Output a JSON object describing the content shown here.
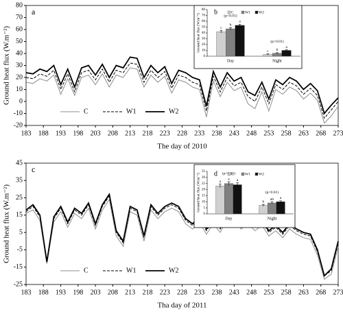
{
  "chart_data": [
    {
      "type": "line",
      "label": "a",
      "y_label": "Ground heat flux (W.m⁻²)",
      "x_label": "The day of 2010",
      "x": [
        183,
        185,
        187,
        189,
        191,
        193,
        195,
        197,
        199,
        201,
        203,
        205,
        207,
        209,
        211,
        213,
        215,
        217,
        219,
        221,
        223,
        225,
        227,
        229,
        231,
        233,
        235,
        237,
        239,
        241,
        243,
        245,
        247,
        249,
        251,
        253,
        255,
        257,
        259,
        261,
        263,
        265,
        267,
        269,
        271,
        273
      ],
      "series": [
        {
          "name": "C",
          "color": "#8c8c8c",
          "values": [
            16,
            15,
            19,
            17,
            22,
            6,
            19,
            5,
            20,
            22,
            14,
            23,
            12,
            22,
            20,
            28,
            27,
            12,
            22,
            16,
            21,
            7,
            18,
            16,
            12,
            10,
            -13,
            17,
            4,
            16,
            9,
            12,
            -2,
            -6,
            8,
            -8,
            10,
            6,
            12,
            9,
            2,
            7,
            1,
            -18,
            -12,
            -4
          ]
        },
        {
          "name": "W1",
          "color": "#000000",
          "dash": true,
          "values": [
            20,
            19,
            23,
            21,
            26,
            10,
            23,
            8,
            24,
            26,
            18,
            27,
            16,
            26,
            24,
            32,
            31,
            16,
            26,
            20,
            25,
            11,
            22,
            20,
            16,
            14,
            -8,
            21,
            8,
            20,
            13,
            16,
            4,
            0,
            12,
            -2,
            14,
            10,
            16,
            13,
            6,
            11,
            5,
            -14,
            -7,
            0
          ]
        },
        {
          "name": "W2",
          "color": "#000000",
          "thick": true,
          "values": [
            24,
            23,
            27,
            25,
            30,
            14,
            27,
            12,
            28,
            30,
            22,
            31,
            20,
            30,
            28,
            37,
            36,
            20,
            30,
            24,
            29,
            15,
            26,
            24,
            20,
            18,
            -4,
            25,
            12,
            24,
            17,
            20,
            8,
            5,
            16,
            2,
            18,
            14,
            20,
            17,
            10,
            15,
            9,
            -10,
            -3,
            3
          ]
        }
      ],
      "xlim": [
        183,
        273
      ],
      "xticks": [
        183,
        188,
        193,
        198,
        203,
        208,
        213,
        218,
        223,
        228,
        233,
        238,
        243,
        248,
        253,
        258,
        263,
        268,
        273
      ],
      "ylim": [
        -20,
        80
      ],
      "yticks": [
        -20,
        -10,
        0,
        10,
        20,
        30,
        40,
        50,
        60,
        70,
        80
      ],
      "legend": "lower left"
    },
    {
      "type": "bar",
      "label": "b",
      "y_label": "Ground heat flux (W.m⁻²)",
      "categories": [
        "Day",
        "Night"
      ],
      "series": [
        {
          "name": "C",
          "color": "#d0d0d0",
          "values": [
            42,
            3
          ],
          "errors": [
            2,
            1
          ],
          "letters": [
            "c",
            "c"
          ]
        },
        {
          "name": "W1",
          "color": "#808080",
          "values": [
            47,
            5
          ],
          "errors": [
            2,
            1
          ],
          "letters": [
            "b",
            "b"
          ]
        },
        {
          "name": "W2",
          "color": "#111111",
          "values": [
            53,
            10
          ],
          "errors": [
            2,
            1
          ],
          "letters": [
            "a",
            "a"
          ]
        }
      ],
      "annotations": [
        "(p<0.01)",
        "(p<0.01)"
      ],
      "ylim": [
        0,
        80
      ],
      "yticks": [
        0,
        10,
        20,
        30,
        40,
        50,
        60,
        70,
        80
      ],
      "legend": "top"
    },
    {
      "type": "line",
      "label": "c",
      "y_label": "Ground heat flux (W.m⁻²)",
      "x_label": "Tha day of 2011",
      "x": [
        183,
        185,
        187,
        189,
        191,
        193,
        195,
        197,
        199,
        201,
        203,
        205,
        207,
        209,
        211,
        213,
        215,
        217,
        219,
        221,
        223,
        225,
        227,
        229,
        231,
        233,
        235,
        237,
        239,
        241,
        243,
        245,
        247,
        249,
        251,
        253,
        255,
        257,
        259,
        261,
        263,
        265,
        267,
        269,
        271,
        273
      ],
      "series": [
        {
          "name": "C",
          "color": "#8c8c8c",
          "values": [
            16,
            18,
            12,
            -13,
            11,
            17,
            8,
            16,
            13,
            19,
            7,
            18,
            24,
            3,
            -3,
            17,
            15,
            0,
            18,
            13,
            17,
            19,
            17,
            10,
            7,
            11,
            4,
            10,
            5,
            13,
            14,
            7,
            10,
            6,
            9,
            3,
            6,
            2,
            7,
            4,
            2,
            1,
            -8,
            -22,
            -19,
            -3
          ]
        },
        {
          "name": "W1",
          "color": "#000000",
          "dash": true,
          "values": [
            17,
            20,
            14,
            -11,
            13,
            19,
            10,
            18,
            15,
            21,
            9,
            20,
            26,
            5,
            -1,
            19,
            17,
            2,
            20,
            15,
            19,
            21,
            19,
            12,
            9,
            13,
            6,
            12,
            7,
            15,
            16,
            9,
            12,
            8,
            11,
            5,
            8,
            4,
            9,
            6,
            4,
            3,
            -6,
            -20,
            -17,
            -1
          ]
        },
        {
          "name": "W2",
          "color": "#000000",
          "thick": true,
          "values": [
            18,
            21,
            15,
            -12,
            14,
            20,
            11,
            19,
            16,
            22,
            10,
            21,
            27,
            6,
            0,
            20,
            18,
            3,
            21,
            16,
            20,
            22,
            20,
            13,
            10,
            14,
            7,
            13,
            8,
            16,
            17,
            10,
            13,
            9,
            12,
            6,
            9,
            5,
            10,
            7,
            5,
            4,
            -5,
            -20,
            -16,
            0
          ]
        }
      ],
      "xlim": [
        183,
        273
      ],
      "xticks": [
        183,
        188,
        193,
        198,
        203,
        208,
        213,
        218,
        223,
        228,
        233,
        238,
        243,
        248,
        253,
        258,
        263,
        268,
        273
      ],
      "ylim": [
        -25,
        45
      ],
      "yticks": [
        -25,
        -15,
        -5,
        5,
        15,
        25,
        35,
        45
      ],
      "legend": "lower left"
    },
    {
      "type": "bar",
      "label": "d",
      "y_label": "Ground heat flux (W.m⁻²)",
      "categories": [
        "Day",
        "Night"
      ],
      "series": [
        {
          "name": "C",
          "color": "#d0d0d0",
          "values": [
            23,
            7
          ],
          "errors": [
            1.5,
            0.8
          ],
          "letters": [
            "a",
            "b"
          ]
        },
        {
          "name": "W1",
          "color": "#808080",
          "values": [
            25,
            9
          ],
          "errors": [
            1.5,
            0.8
          ],
          "letters": [
            "a",
            "ab"
          ]
        },
        {
          "name": "W2",
          "color": "#111111",
          "values": [
            24,
            10
          ],
          "errors": [
            1.5,
            0.8
          ],
          "letters": [
            "a",
            "a"
          ]
        }
      ],
      "annotations": [
        "(p<0.01)",
        "(p<0.01)"
      ],
      "ylim": [
        0,
        35
      ],
      "yticks": [
        0,
        5,
        10,
        15,
        20,
        25,
        30,
        35
      ],
      "legend": "top"
    }
  ]
}
